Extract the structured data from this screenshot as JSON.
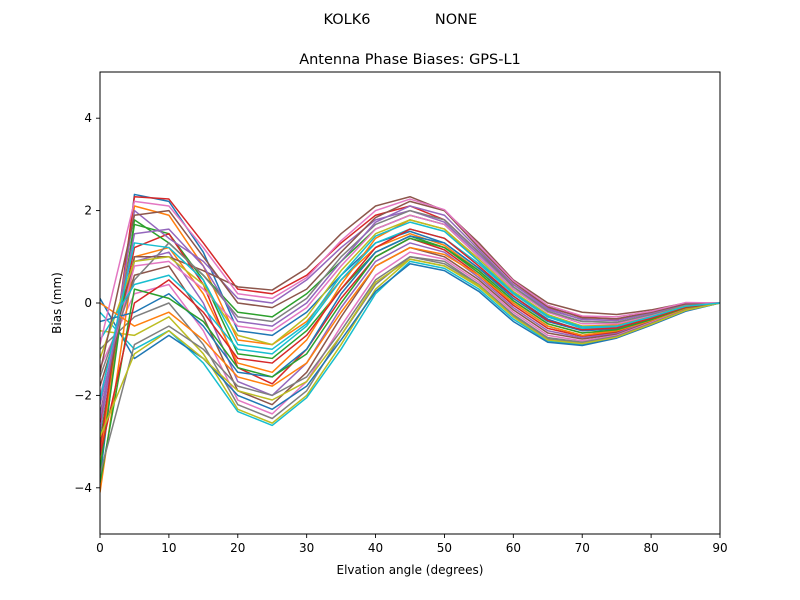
{
  "suptitle": {
    "station": "KOLK6",
    "antenna": "NONE"
  },
  "chart_data": {
    "type": "line",
    "title": "Antenna Phase Biases: GPS-L1",
    "xlabel": "Elvation angle (degrees)",
    "ylabel": "Bias (mm)",
    "xlim": [
      0,
      90
    ],
    "ylim": [
      -5,
      5
    ],
    "xticks": [
      0,
      10,
      20,
      30,
      40,
      50,
      60,
      70,
      80,
      90
    ],
    "yticks": [
      -4,
      -2,
      0,
      2,
      4
    ],
    "grid": false,
    "legend": "none",
    "x": [
      0,
      5,
      10,
      15,
      20,
      25,
      30,
      35,
      40,
      45,
      50,
      55,
      60,
      65,
      70,
      75,
      80,
      85,
      90
    ],
    "series_colors": [
      "#1f77b4",
      "#ff7f0e",
      "#2ca02c",
      "#d62728",
      "#9467bd",
      "#8c564b",
      "#e377c2",
      "#7f7f7f",
      "#bcbd22",
      "#17becf"
    ],
    "series": [
      {
        "values": [
          -3.8,
          2.35,
          2.2,
          1.1,
          -0.6,
          -0.7,
          -0.2,
          0.6,
          1.3,
          1.55,
          1.3,
          0.75,
          0.1,
          -0.4,
          -0.6,
          -0.55,
          -0.3,
          -0.1,
          0.0
        ]
      },
      {
        "values": [
          -3.4,
          2.1,
          1.9,
          0.8,
          -0.8,
          -0.9,
          -0.4,
          0.5,
          1.2,
          1.5,
          1.25,
          0.7,
          0.05,
          -0.45,
          -0.65,
          -0.6,
          -0.32,
          -0.1,
          0.0
        ]
      },
      {
        "values": [
          -3.0,
          1.7,
          1.5,
          0.5,
          -1.1,
          -1.2,
          -0.6,
          0.3,
          1.1,
          1.45,
          1.2,
          0.65,
          0.0,
          -0.5,
          -0.7,
          -0.62,
          -0.34,
          -0.1,
          0.0
        ]
      },
      {
        "values": [
          -2.6,
          1.2,
          1.5,
          0.4,
          -1.4,
          -1.75,
          -1.0,
          0.1,
          1.0,
          1.4,
          1.15,
          0.6,
          -0.05,
          -0.55,
          -0.72,
          -0.64,
          -0.36,
          -0.11,
          0.0
        ]
      },
      {
        "values": [
          -2.2,
          0.9,
          1.1,
          0.0,
          -1.7,
          -2.0,
          -1.3,
          -0.1,
          0.9,
          1.3,
          1.1,
          0.55,
          -0.1,
          -0.6,
          -0.75,
          -0.66,
          -0.38,
          -0.12,
          0.0
        ]
      },
      {
        "values": [
          -1.8,
          0.6,
          0.8,
          -0.3,
          -1.9,
          -2.2,
          -1.5,
          -0.3,
          0.8,
          1.2,
          1.0,
          0.5,
          -0.15,
          -0.65,
          -0.78,
          -0.68,
          -0.4,
          -0.13,
          0.0
        ]
      },
      {
        "values": [
          -1.4,
          0.2,
          0.4,
          -0.6,
          -2.1,
          -2.4,
          -1.7,
          -0.5,
          0.6,
          1.1,
          0.95,
          0.45,
          -0.2,
          -0.7,
          -0.82,
          -0.7,
          -0.42,
          -0.14,
          0.0
        ]
      },
      {
        "values": [
          -1.0,
          -0.3,
          0.0,
          -0.9,
          -2.2,
          -2.5,
          -1.9,
          -0.7,
          0.4,
          1.0,
          0.9,
          0.4,
          -0.25,
          -0.75,
          -0.85,
          -0.72,
          -0.44,
          -0.15,
          0.0
        ]
      },
      {
        "values": [
          -0.6,
          -0.7,
          -0.3,
          -1.1,
          -2.3,
          -2.6,
          -2.0,
          -0.9,
          0.3,
          0.95,
          0.8,
          0.35,
          -0.3,
          -0.8,
          -0.88,
          -0.74,
          -0.46,
          -0.16,
          0.0
        ]
      },
      {
        "values": [
          -0.2,
          -1.0,
          -0.6,
          -1.3,
          -2.35,
          -2.65,
          -2.05,
          -1.0,
          0.2,
          0.9,
          0.75,
          0.3,
          -0.35,
          -0.82,
          -0.9,
          -0.75,
          -0.47,
          -0.17,
          0.0
        ]
      },
      {
        "values": [
          0.1,
          -1.2,
          -0.7,
          -1.2,
          -2.0,
          -2.3,
          -1.8,
          -0.8,
          0.25,
          0.85,
          0.7,
          0.25,
          -0.4,
          -0.85,
          -0.92,
          -0.76,
          -0.48,
          -0.18,
          0.0
        ]
      },
      {
        "values": [
          -4.1,
          1.0,
          1.2,
          0.2,
          -1.3,
          -1.5,
          -0.8,
          0.4,
          1.4,
          1.8,
          1.6,
          0.9,
          0.2,
          -0.3,
          -0.5,
          -0.48,
          -0.28,
          -0.08,
          0.0
        ]
      },
      {
        "values": [
          -3.6,
          1.8,
          1.3,
          0.6,
          -0.2,
          -0.3,
          0.2,
          0.9,
          1.6,
          1.9,
          1.7,
          1.0,
          0.3,
          -0.2,
          -0.4,
          -0.42,
          -0.25,
          -0.07,
          0.0
        ]
      },
      {
        "values": [
          -3.2,
          2.3,
          2.25,
          1.3,
          0.3,
          0.2,
          0.6,
          1.3,
          1.9,
          2.1,
          1.8,
          1.1,
          0.4,
          -0.1,
          -0.3,
          -0.35,
          -0.2,
          -0.05,
          0.0
        ]
      },
      {
        "values": [
          -2.8,
          2.0,
          1.4,
          0.9,
          0.1,
          0.0,
          0.5,
          1.2,
          1.8,
          2.0,
          1.75,
          1.05,
          0.35,
          -0.15,
          -0.35,
          -0.38,
          -0.22,
          -0.06,
          0.0
        ]
      },
      {
        "values": [
          -2.4,
          1.0,
          1.0,
          0.7,
          0.35,
          0.28,
          0.75,
          1.5,
          2.1,
          2.3,
          2.0,
          1.3,
          0.5,
          0.0,
          -0.2,
          -0.25,
          -0.15,
          0.0,
          0.0
        ]
      },
      {
        "values": [
          -2.0,
          0.8,
          0.9,
          0.3,
          -0.5,
          -0.6,
          -0.1,
          0.8,
          1.6,
          1.9,
          1.7,
          1.0,
          0.3,
          -0.2,
          -0.45,
          -0.45,
          -0.27,
          -0.05,
          0.0
        ]
      },
      {
        "values": [
          -1.6,
          0.5,
          1.3,
          0.6,
          -0.3,
          -0.4,
          0.1,
          1.0,
          1.7,
          2.0,
          1.8,
          1.1,
          0.35,
          -0.18,
          -0.4,
          -0.42,
          -0.25,
          -0.04,
          0.0
        ]
      },
      {
        "values": [
          -1.2,
          0.9,
          1.0,
          0.4,
          -0.7,
          -0.9,
          -0.3,
          0.7,
          1.5,
          1.8,
          1.6,
          0.95,
          0.25,
          -0.25,
          -0.5,
          -0.5,
          -0.3,
          -0.06,
          0.0
        ]
      },
      {
        "values": [
          -0.8,
          0.4,
          0.6,
          -0.1,
          -1.0,
          -1.1,
          -0.5,
          0.5,
          1.3,
          1.6,
          1.4,
          0.85,
          0.2,
          -0.3,
          -0.55,
          -0.52,
          -0.32,
          -0.08,
          0.0
        ]
      },
      {
        "values": [
          -0.4,
          -0.2,
          0.2,
          -0.5,
          -1.5,
          -1.6,
          -1.0,
          0.2,
          1.1,
          1.45,
          1.3,
          0.75,
          0.15,
          -0.35,
          -0.6,
          -0.56,
          -0.34,
          -0.09,
          0.0
        ]
      },
      {
        "values": [
          0.0,
          -0.5,
          -0.2,
          -0.8,
          -1.6,
          -1.8,
          -1.3,
          -0.2,
          0.8,
          1.2,
          1.05,
          0.6,
          0.0,
          -0.5,
          -0.7,
          -0.6,
          -0.38,
          -0.12,
          0.0
        ]
      },
      {
        "values": [
          -3.9,
          0.3,
          0.1,
          -0.4,
          -1.4,
          -1.6,
          -1.1,
          0.0,
          1.0,
          1.4,
          1.2,
          0.7,
          0.05,
          -0.45,
          -0.65,
          -0.58,
          -0.36,
          -0.1,
          0.0
        ]
      },
      {
        "values": [
          -3.3,
          0.0,
          0.5,
          -0.2,
          -1.2,
          -1.3,
          -0.7,
          0.3,
          1.2,
          1.6,
          1.4,
          0.8,
          0.15,
          -0.38,
          -0.58,
          -0.54,
          -0.33,
          -0.09,
          0.0
        ]
      },
      {
        "values": [
          -2.5,
          1.5,
          1.6,
          0.8,
          -0.4,
          -0.5,
          0.0,
          0.9,
          1.75,
          2.1,
          1.9,
          1.15,
          0.4,
          -0.12,
          -0.36,
          -0.38,
          -0.22,
          -0.03,
          0.0
        ]
      },
      {
        "values": [
          -1.5,
          1.9,
          2.0,
          1.0,
          0.0,
          -0.1,
          0.3,
          1.1,
          1.85,
          2.2,
          2.0,
          1.2,
          0.45,
          -0.08,
          -0.32,
          -0.34,
          -0.2,
          -0.02,
          0.0
        ]
      },
      {
        "values": [
          -0.9,
          2.2,
          2.1,
          1.2,
          0.2,
          0.1,
          0.55,
          1.35,
          2.0,
          2.25,
          2.02,
          1.25,
          0.48,
          -0.05,
          -0.28,
          -0.3,
          -0.18,
          0.01,
          0.0
        ]
      },
      {
        "values": [
          -3.7,
          -0.9,
          -0.5,
          -1.0,
          -1.8,
          -2.0,
          -1.6,
          -0.6,
          0.5,
          1.0,
          0.85,
          0.4,
          -0.28,
          -0.78,
          -0.87,
          -0.73,
          -0.45,
          -0.15,
          0.0
        ]
      },
      {
        "values": [
          -2.9,
          -1.1,
          -0.6,
          -1.2,
          -1.9,
          -2.1,
          -1.7,
          -0.7,
          0.45,
          0.95,
          0.8,
          0.38,
          -0.3,
          -0.8,
          -0.88,
          -0.74,
          -0.46,
          -0.16,
          0.0
        ]
      },
      {
        "values": [
          -2.1,
          1.3,
          1.2,
          0.5,
          -0.9,
          -1.0,
          -0.45,
          0.6,
          1.45,
          1.75,
          1.55,
          0.9,
          0.22,
          -0.28,
          -0.52,
          -0.5,
          -0.3,
          -0.07,
          0.0
        ]
      }
    ]
  }
}
